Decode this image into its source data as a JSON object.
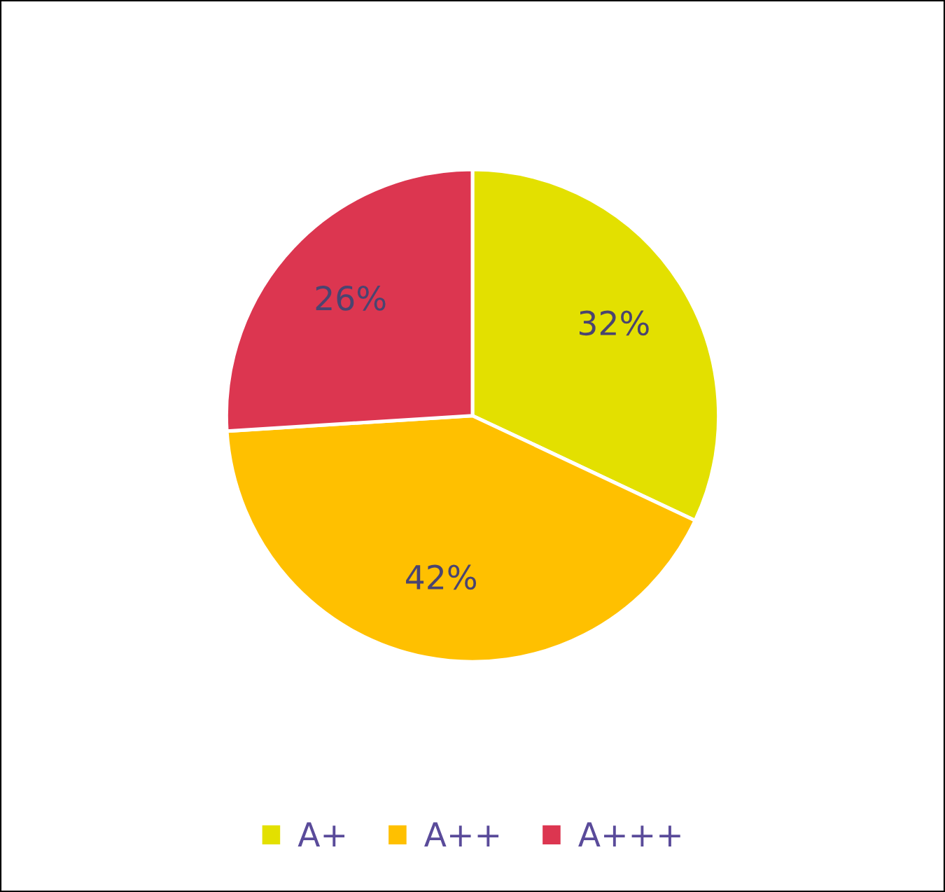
{
  "chart_data": {
    "type": "pie",
    "categories": [
      "A+",
      "A++",
      "A+++"
    ],
    "values": [
      32,
      42,
      26
    ],
    "colors": [
      "#e3e000",
      "#ffc000",
      "#dc3650"
    ],
    "value_labels": [
      "32%",
      "42%",
      "26%"
    ],
    "legend": "bottom"
  }
}
